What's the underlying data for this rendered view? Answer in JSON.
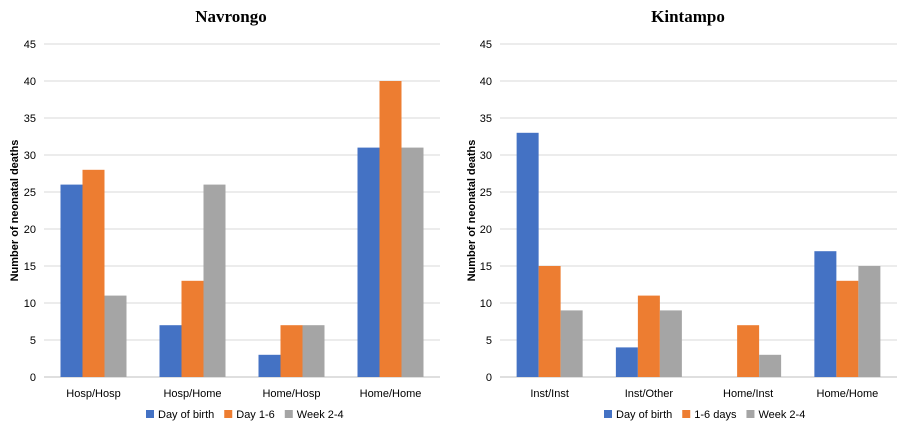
{
  "chart_data": [
    {
      "type": "bar",
      "title": "Navrongo",
      "ylabel": "Number of neonatal deaths",
      "xlabel": "",
      "ylim": [
        0,
        45
      ],
      "yticks": [
        0,
        5,
        10,
        15,
        20,
        25,
        30,
        35,
        40,
        45
      ],
      "categories": [
        "Hosp/Hosp",
        "Hosp/Home",
        "Home/Hosp",
        "Home/Home"
      ],
      "series": [
        {
          "name": "Day of birth",
          "color": "#4472C4",
          "values": [
            26,
            7,
            3,
            31
          ]
        },
        {
          "name": "Day 1-6",
          "color": "#ED7D31",
          "values": [
            28,
            13,
            7,
            40
          ]
        },
        {
          "name": "Week 2-4",
          "color": "#A5A5A5",
          "values": [
            11,
            26,
            7,
            31
          ]
        }
      ],
      "grid": true,
      "legend": "bottom"
    },
    {
      "type": "bar",
      "title": "Kintampo",
      "ylabel": "Number of neonatal deaths",
      "xlabel": "",
      "ylim": [
        0,
        45
      ],
      "yticks": [
        0,
        5,
        10,
        15,
        20,
        25,
        30,
        35,
        40,
        45
      ],
      "categories": [
        "Inst/Inst",
        "Inst/Other",
        "Home/Inst",
        "Home/Home"
      ],
      "series": [
        {
          "name": "Day of birth",
          "color": "#4472C4",
          "values": [
            33,
            4,
            0,
            17
          ]
        },
        {
          "name": "1-6 days",
          "color": "#ED7D31",
          "values": [
            15,
            11,
            7,
            13
          ]
        },
        {
          "name": "Week 2-4",
          "color": "#A5A5A5",
          "values": [
            9,
            9,
            3,
            15
          ]
        }
      ],
      "grid": true,
      "legend": "bottom"
    }
  ]
}
